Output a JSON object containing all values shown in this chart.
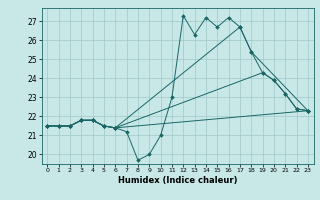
{
  "title": "",
  "xlabel": "Humidex (Indice chaleur)",
  "bg_color": "#c8e8e8",
  "grid_color": "#a0c8c8",
  "line_color": "#1a6666",
  "xlim": [
    -0.5,
    23.5
  ],
  "ylim": [
    19.5,
    27.7
  ],
  "xticks": [
    0,
    1,
    2,
    3,
    4,
    5,
    6,
    7,
    8,
    9,
    10,
    11,
    12,
    13,
    14,
    15,
    16,
    17,
    18,
    19,
    20,
    21,
    22,
    23
  ],
  "yticks": [
    20,
    21,
    22,
    23,
    24,
    25,
    26,
    27
  ],
  "line1": {
    "x": [
      0,
      1,
      2,
      3,
      4,
      5,
      6,
      7,
      8,
      9,
      10,
      11,
      12,
      13,
      14,
      15,
      16,
      17,
      18,
      19,
      20,
      21,
      22,
      23
    ],
    "y": [
      21.5,
      21.5,
      21.5,
      21.8,
      21.8,
      21.5,
      21.4,
      21.2,
      19.7,
      20.0,
      21.0,
      23.0,
      27.3,
      26.3,
      27.2,
      26.7,
      27.2,
      26.7,
      25.4,
      24.3,
      23.9,
      23.2,
      22.4,
      22.3
    ]
  },
  "line2": {
    "x": [
      0,
      1,
      2,
      3,
      4,
      5,
      6,
      23
    ],
    "y": [
      21.5,
      21.5,
      21.5,
      21.8,
      21.8,
      21.5,
      21.4,
      22.3
    ]
  },
  "line3": {
    "x": [
      0,
      1,
      2,
      3,
      4,
      5,
      6,
      19,
      20,
      21,
      22,
      23
    ],
    "y": [
      21.5,
      21.5,
      21.5,
      21.8,
      21.8,
      21.5,
      21.4,
      24.3,
      23.9,
      23.2,
      22.4,
      22.3
    ]
  },
  "line4": {
    "x": [
      0,
      1,
      2,
      3,
      4,
      5,
      6,
      17,
      18,
      23
    ],
    "y": [
      21.5,
      21.5,
      21.5,
      21.8,
      21.8,
      21.5,
      21.4,
      26.7,
      25.4,
      22.3
    ]
  }
}
